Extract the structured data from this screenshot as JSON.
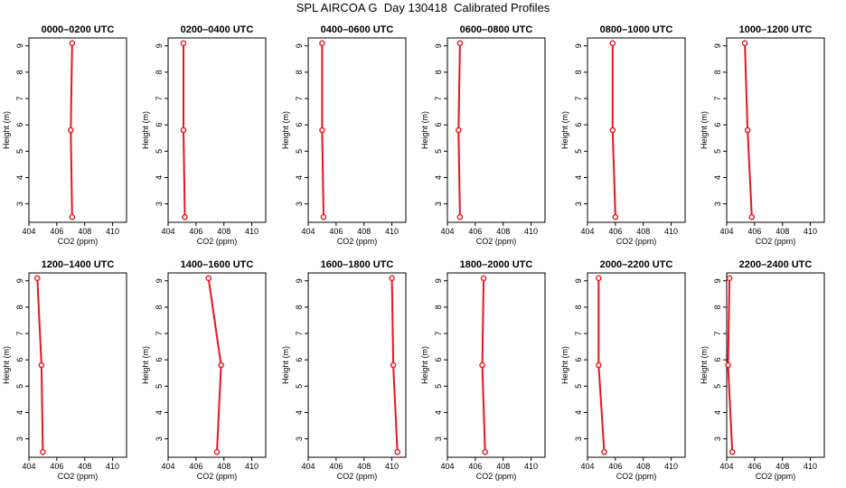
{
  "page_title": "SPL AIRCOA G  Day 130418  Calibrated Profiles",
  "colors": {
    "series": "#e8141d",
    "axis": "#000000",
    "background": "#ffffff"
  },
  "chart_data": [
    {
      "type": "line",
      "title": "0000–0200 UTC",
      "xlabel": "CO2 (ppm)",
      "ylabel": "Height (m)",
      "xlim": [
        404,
        411
      ],
      "ylim": [
        2.3,
        9.3
      ],
      "xticks": [
        404,
        406,
        408,
        410
      ],
      "yticks": [
        3,
        4,
        5,
        6,
        7,
        8,
        9
      ],
      "series": [
        {
          "x": [
            407.1,
            407.0,
            407.1
          ],
          "y": [
            2.5,
            5.8,
            9.1
          ]
        }
      ]
    },
    {
      "type": "line",
      "title": "0200–0400 UTC",
      "xlabel": "CO2 (ppm)",
      "ylabel": "Height (m)",
      "xlim": [
        404,
        411
      ],
      "ylim": [
        2.3,
        9.3
      ],
      "xticks": [
        404,
        406,
        408,
        410
      ],
      "yticks": [
        3,
        4,
        5,
        6,
        7,
        8,
        9
      ],
      "series": [
        {
          "x": [
            405.2,
            405.1,
            405.1
          ],
          "y": [
            2.5,
            5.8,
            9.1
          ]
        }
      ]
    },
    {
      "type": "line",
      "title": "0400–0600 UTC",
      "xlabel": "CO2 (ppm)",
      "ylabel": "Height (m)",
      "xlim": [
        404,
        411
      ],
      "ylim": [
        2.3,
        9.3
      ],
      "xticks": [
        404,
        406,
        408,
        410
      ],
      "yticks": [
        3,
        4,
        5,
        6,
        7,
        8,
        9
      ],
      "series": [
        {
          "x": [
            405.1,
            405.0,
            405.0
          ],
          "y": [
            2.5,
            5.8,
            9.1
          ]
        }
      ]
    },
    {
      "type": "line",
      "title": "0600–0800 UTC",
      "xlabel": "CO2 (ppm)",
      "ylabel": "Height (m)",
      "xlim": [
        404,
        411
      ],
      "ylim": [
        2.3,
        9.3
      ],
      "xticks": [
        404,
        406,
        408,
        410
      ],
      "yticks": [
        3,
        4,
        5,
        6,
        7,
        8,
        9
      ],
      "series": [
        {
          "x": [
            404.9,
            404.8,
            404.9
          ],
          "y": [
            2.5,
            5.8,
            9.1
          ]
        }
      ]
    },
    {
      "type": "line",
      "title": "0800–1000 UTC",
      "xlabel": "CO2 (ppm)",
      "ylabel": "Height (m)",
      "xlim": [
        404,
        411
      ],
      "ylim": [
        2.3,
        9.3
      ],
      "xticks": [
        404,
        406,
        408,
        410
      ],
      "yticks": [
        3,
        4,
        5,
        6,
        7,
        8,
        9
      ],
      "series": [
        {
          "x": [
            406.0,
            405.8,
            405.8
          ],
          "y": [
            2.5,
            5.8,
            9.1
          ]
        }
      ]
    },
    {
      "type": "line",
      "title": "1000–1200 UTC",
      "xlabel": "CO2 (ppm)",
      "ylabel": "Height (m)",
      "xlim": [
        404,
        411
      ],
      "ylim": [
        2.3,
        9.3
      ],
      "xticks": [
        404,
        406,
        408,
        410
      ],
      "yticks": [
        3,
        4,
        5,
        6,
        7,
        8,
        9
      ],
      "series": [
        {
          "x": [
            405.8,
            405.5,
            405.3
          ],
          "y": [
            2.5,
            5.8,
            9.1
          ]
        }
      ]
    },
    {
      "type": "line",
      "title": "1200–1400 UTC",
      "xlabel": "CO2 (ppm)",
      "ylabel": "Height (m)",
      "xlim": [
        404,
        411
      ],
      "ylim": [
        2.3,
        9.3
      ],
      "xticks": [
        404,
        406,
        408,
        410
      ],
      "yticks": [
        3,
        4,
        5,
        6,
        7,
        8,
        9
      ],
      "series": [
        {
          "x": [
            405.0,
            404.9,
            404.6
          ],
          "y": [
            2.5,
            5.8,
            9.1
          ]
        }
      ]
    },
    {
      "type": "line",
      "title": "1400–1600 UTC",
      "xlabel": "CO2 (ppm)",
      "ylabel": "Height (m)",
      "xlim": [
        404,
        411
      ],
      "ylim": [
        2.3,
        9.3
      ],
      "xticks": [
        404,
        406,
        408,
        410
      ],
      "yticks": [
        3,
        4,
        5,
        6,
        7,
        8,
        9
      ],
      "series": [
        {
          "x": [
            407.5,
            407.8,
            406.9
          ],
          "y": [
            2.5,
            5.8,
            9.1
          ]
        }
      ]
    },
    {
      "type": "line",
      "title": "1600–1800 UTC",
      "xlabel": "CO2 (ppm)",
      "ylabel": "Height (m)",
      "xlim": [
        404,
        411
      ],
      "ylim": [
        2.3,
        9.3
      ],
      "xticks": [
        404,
        406,
        408,
        410
      ],
      "yticks": [
        3,
        4,
        5,
        6,
        7,
        8,
        9
      ],
      "series": [
        {
          "x": [
            410.4,
            410.1,
            410.0
          ],
          "y": [
            2.5,
            5.8,
            9.1
          ]
        }
      ]
    },
    {
      "type": "line",
      "title": "1800–2000 UTC",
      "xlabel": "CO2 (ppm)",
      "ylabel": "Height (m)",
      "xlim": [
        404,
        411
      ],
      "ylim": [
        2.3,
        9.3
      ],
      "xticks": [
        404,
        406,
        408,
        410
      ],
      "yticks": [
        3,
        4,
        5,
        6,
        7,
        8,
        9
      ],
      "series": [
        {
          "x": [
            406.7,
            406.5,
            406.6
          ],
          "y": [
            2.5,
            5.8,
            9.1
          ]
        }
      ]
    },
    {
      "type": "line",
      "title": "2000–2200 UTC",
      "xlabel": "CO2 (ppm)",
      "ylabel": "Height (m)",
      "xlim": [
        404,
        411
      ],
      "ylim": [
        2.3,
        9.3
      ],
      "xticks": [
        404,
        406,
        408,
        410
      ],
      "yticks": [
        3,
        4,
        5,
        6,
        7,
        8,
        9
      ],
      "series": [
        {
          "x": [
            405.2,
            404.8,
            404.8
          ],
          "y": [
            2.5,
            5.8,
            9.1
          ]
        }
      ]
    },
    {
      "type": "line",
      "title": "2200–2400 UTC",
      "xlabel": "CO2 (ppm)",
      "ylabel": "Height (m)",
      "xlim": [
        404,
        411
      ],
      "ylim": [
        2.3,
        9.3
      ],
      "xticks": [
        404,
        406,
        408,
        410
      ],
      "yticks": [
        3,
        4,
        5,
        6,
        7,
        8,
        9
      ],
      "series": [
        {
          "x": [
            404.4,
            404.1,
            404.2
          ],
          "y": [
            2.5,
            5.8,
            9.1
          ]
        }
      ]
    }
  ]
}
